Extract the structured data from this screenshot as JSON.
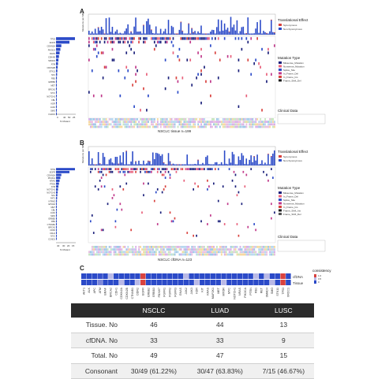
{
  "panels": {
    "a": {
      "letter": "A",
      "caption": "NSCLC tissue n=199",
      "gene_labels": [
        "TP53",
        "EGFR",
        "CDKN2A",
        "PIK3CA",
        "KRAS",
        "CDK4/6",
        "SMAD4",
        "ATM",
        "CDKN2B",
        "STK11",
        "NF1",
        "RB1",
        "ERBB2",
        "MET",
        "BRCA2",
        "MYC",
        "NOTCH1",
        "CBL",
        "KDR",
        "JAK2",
        "SMO",
        "FGFR1"
      ],
      "bar_axis_ticks": [
        "0",
        "40",
        "50",
        "25"
      ],
      "bar_axis_label": "% Mutant",
      "top_axis_label": "Mutations per MB",
      "top_axis_ticks": [
        "15",
        "10",
        "5"
      ],
      "effect_legend_title": "Translational Effect",
      "effect_legend_items": [
        "Synonymous",
        "Non-Synonymous"
      ],
      "mutation_legend_title": "Mutation Type",
      "mutation_legend_items": [
        "Missense_Mutation",
        "Nonsense_Mutation",
        "Splice_Site",
        "In_Frame_Del",
        "In_Frame_Ins",
        "Frame_Shift_Del"
      ],
      "clinical_title": "Clinical Data"
    },
    "b": {
      "letter": "B",
      "caption": "NSCLC cfDNA n=123",
      "gene_labels": [
        "TP53",
        "EGFR",
        "CDKN2A",
        "PIK3CA",
        "KRAS",
        "PTEN",
        "ATM",
        "NOTCH1",
        "NOTCH3",
        "NF1",
        "FAT1",
        "NTRK3",
        "EPHA2",
        "MET",
        "CBL",
        "JAK2",
        "SMO",
        "ERBB2",
        "RB1",
        "CTNNB1",
        "BRCA2",
        "CDK6",
        "CDH1",
        "MYC",
        "CCND1"
      ],
      "bar_axis_ticks": [
        "40",
        "30",
        "20",
        "15"
      ],
      "bar_axis_label": "% Mutant",
      "top_axis_label": "Mutations per MB",
      "effect_legend_title": "Translational Effect",
      "effect_legend_items": [
        "Synonymous",
        "Non-Synonymous"
      ],
      "mutation_legend_title": "Mutation Type",
      "mutation_legend_items": [
        "Missense_Mutation",
        "In_Frame_Del",
        "Splice_Site",
        "Nonsense_Mutation",
        "In_Frame_Ins",
        "Frame_Shift_Ins",
        "Frame_Shift_Del"
      ],
      "clinical_title": "Clinical Data"
    },
    "c": {
      "letter": "C",
      "legend_title": "consistency",
      "legend_ticks": [
        "1.0",
        "0.5",
        "0"
      ],
      "row_labels": [
        "cfDNA",
        "Tissue"
      ],
      "genes": [
        "AKT1",
        "ALK",
        "APC",
        "ATM",
        "BRAF",
        "BRCA2",
        "CDH1",
        "CDKN2A",
        "CDKN2B",
        "CTNNB1",
        "DDR2",
        "EGFR",
        "ERBB2",
        "ERBB3",
        "FBXW7",
        "FGFR1",
        "FGFR2",
        "FGFR3",
        "GNAS",
        "JAK2",
        "JAK3",
        "KDR",
        "KIT",
        "KRAS",
        "MAP2K1",
        "MET",
        "MTOR",
        "MYC",
        "NOTCH1",
        "NRAS",
        "PIK3CA",
        "PTEN",
        "RB1",
        "RET",
        "SMAD4",
        "SMO",
        "STK11",
        "TP53",
        "XRCC1"
      ],
      "cfdna_colors": [
        "#2b4ac8",
        "#2b4ac8",
        "#2b4ac8",
        "#3550cc",
        "#2b4ac8",
        "#b9b9e6",
        "#2b4ac8",
        "#2b4ac8",
        "#2b4ac8",
        "#2b4ac8",
        "#2b4ac8",
        "#d9423e",
        "#2b4ac8",
        "#2b4ac8",
        "#2b4ac8",
        "#2b4ac8",
        "#2b4ac8",
        "#2b4ac8",
        "#2b4ac8",
        "#b9b9e6",
        "#2b4ac8",
        "#2b4ac8",
        "#2b4ac8",
        "#2b4ac8",
        "#2b4ac8",
        "#2b4ac8",
        "#2b4ac8",
        "#2b4ac8",
        "#2b4ac8",
        "#2b4ac8",
        "#2b4ac8",
        "#2b4ac8",
        "#b9b9e6",
        "#2b4ac8",
        "#b9b9e6",
        "#2b4ac8",
        "#2b4ac8",
        "#d9423e",
        "#2b4ac8"
      ],
      "tissue_colors": [
        "#2b4ac8",
        "#2b4ac8",
        "#2b4ac8",
        "#7b86d8",
        "#2b4ac8",
        "#2b4ac8",
        "#2b4ac8",
        "#b9b9e6",
        "#2b4ac8",
        "#2b4ac8",
        "#b9b9e6",
        "#d9423e",
        "#2b4ac8",
        "#2b4ac8",
        "#2b4ac8",
        "#2b4ac8",
        "#2b4ac8",
        "#2b4ac8",
        "#2b4ac8",
        "#2b4ac8",
        "#2b4ac8",
        "#b9b9e6",
        "#2b4ac8",
        "#2b4ac8",
        "#2b4ac8",
        "#2b4ac8",
        "#b9b9e6",
        "#2b4ac8",
        "#2b4ac8",
        "#2b4ac8",
        "#2b4ac8",
        "#2b4ac8",
        "#2b4ac8",
        "#2b4ac8",
        "#2b4ac8",
        "#b9b9e6",
        "#2b4ac8",
        "#d9423e",
        "#2b4ac8"
      ]
    }
  },
  "table": {
    "headers": [
      "",
      "NSCLC",
      "LUAD",
      "LUSC"
    ],
    "rows": [
      [
        "Tissue. No",
        "46",
        "44",
        "13"
      ],
      [
        "cfDNA. No",
        "33",
        "33",
        "9"
      ],
      [
        "Total. No",
        "49",
        "47",
        "15"
      ],
      [
        "Consonant",
        "30/49 (61.22%)",
        "30/47 (63.83%)",
        "7/15 (46.67%)"
      ]
    ]
  },
  "colors": {
    "blue": "#2b4ac8",
    "navy": "#1a1f7a",
    "red": "#d9423e",
    "pink": "#e8607a",
    "magenta": "#c0398a",
    "dark": "#1b1b1b"
  }
}
